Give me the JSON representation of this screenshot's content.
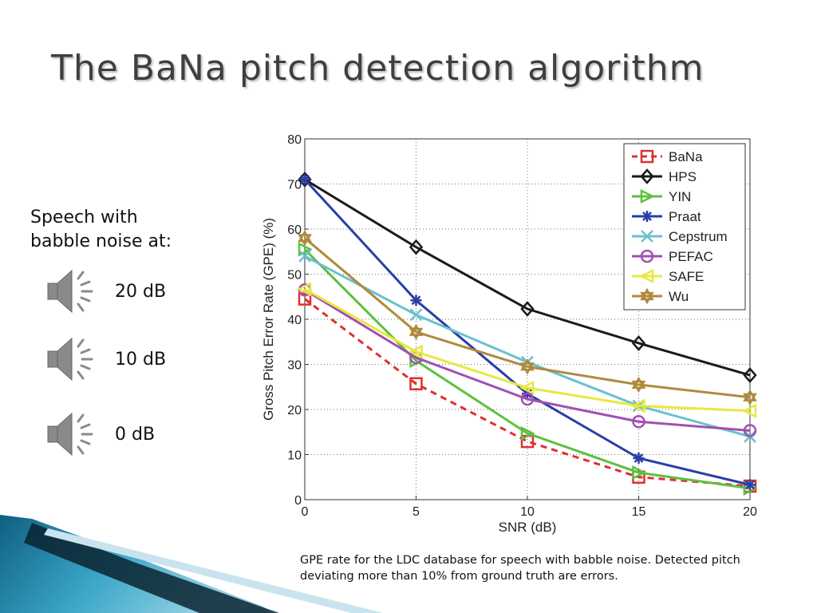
{
  "slide": {
    "title": "The BaNa pitch detection algorithm",
    "intro_line1": "Speech with",
    "intro_line2": "babble noise at:",
    "audio_items": [
      {
        "label": "20 dB",
        "icon": "speaker-icon"
      },
      {
        "label": "10 dB",
        "icon": "speaker-icon"
      },
      {
        "label": "0 dB",
        "icon": "speaker-icon"
      }
    ],
    "caption": "GPE rate for the LDC database for speech with babble noise. Detected pitch deviating more than 10% from ground truth are errors.",
    "colors": {
      "title": "#3f3f3f",
      "corner_teal": "#1a7fa0",
      "corner_dark": "#0b2330"
    }
  },
  "chart_data": {
    "type": "line",
    "title": "",
    "xlabel": "SNR (dB)",
    "ylabel": "Gross Pitch Error Rate (GPE) (%)",
    "x": [
      0,
      5,
      10,
      15,
      20
    ],
    "xlim": [
      0,
      20
    ],
    "ylim": [
      0,
      80
    ],
    "xticks": [
      0,
      5,
      10,
      15,
      20
    ],
    "yticks": [
      0,
      10,
      20,
      30,
      40,
      50,
      60,
      70,
      80
    ],
    "grid": true,
    "legend_position": "top-right",
    "series": [
      {
        "name": "BaNa",
        "color": "#e03030",
        "marker": "square",
        "dash": true,
        "values": [
          44.5,
          25.7,
          12.9,
          5.0,
          3.0
        ]
      },
      {
        "name": "HPS",
        "color": "#1a1a1a",
        "marker": "diamond",
        "dash": false,
        "values": [
          71.0,
          56.0,
          42.3,
          34.7,
          27.6
        ]
      },
      {
        "name": "YIN",
        "color": "#5cc040",
        "marker": "triangle-right",
        "dash": false,
        "values": [
          55.5,
          30.8,
          14.7,
          6.0,
          2.5
        ]
      },
      {
        "name": "Praat",
        "color": "#2a3ea8",
        "marker": "star",
        "dash": false,
        "values": [
          71.0,
          44.2,
          23.5,
          9.2,
          3.3
        ]
      },
      {
        "name": "Cepstrum",
        "color": "#6cc0d0",
        "marker": "x",
        "dash": false,
        "values": [
          54.0,
          41.0,
          30.5,
          20.8,
          14.0
        ]
      },
      {
        "name": "PEFAC",
        "color": "#a050b0",
        "marker": "circle",
        "dash": false,
        "values": [
          46.5,
          31.5,
          22.3,
          17.3,
          15.3
        ]
      },
      {
        "name": "SAFE",
        "color": "#e8e840",
        "marker": "triangle-left",
        "dash": false,
        "values": [
          46.7,
          32.8,
          24.8,
          20.8,
          19.7
        ]
      },
      {
        "name": "Wu",
        "color": "#b08a3c",
        "marker": "hexagram",
        "dash": false,
        "values": [
          58.0,
          37.2,
          29.5,
          25.5,
          22.7
        ]
      }
    ]
  }
}
